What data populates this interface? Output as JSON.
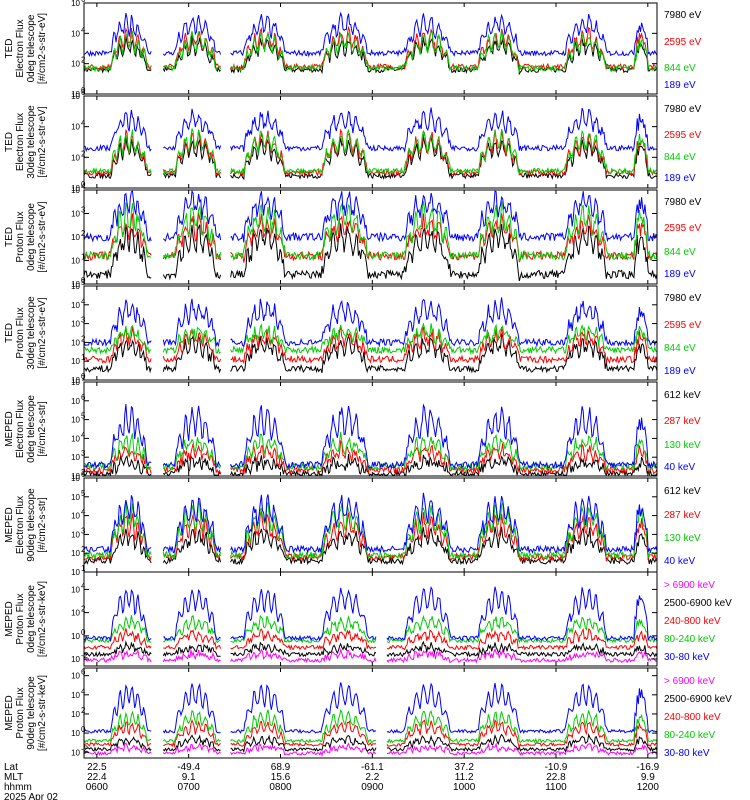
{
  "chart_data": [
    {
      "type": "line",
      "yscale": "log",
      "ylabel": [
        "TED",
        "Electron Flux",
        "0deg telescope",
        "[#/cm2-s-str-eV]"
      ],
      "yticks": [
        {
          "exp": 0,
          "base": "10"
        },
        {
          "exp": 2,
          "base": "10"
        },
        {
          "exp": 4,
          "base": "10"
        },
        {
          "exp": 6,
          "base": "10"
        }
      ],
      "ylim": [
        0,
        6
      ],
      "series": [
        {
          "name": "7980 eV",
          "color": "#000000",
          "base": 1.6,
          "peak": 3.6
        },
        {
          "name": "2595 eV",
          "color": "#ff0000",
          "base": 1.8,
          "peak": 4.2
        },
        {
          "name": "844 eV",
          "color": "#00cc00",
          "base": 1.7,
          "peak": 4.0
        },
        {
          "name": "189 eV",
          "color": "#0000ff",
          "base": 2.7,
          "peak": 5.1
        }
      ]
    },
    {
      "type": "line",
      "yscale": "log",
      "ylabel": [
        "TED",
        "Electron Flux",
        "30deg telescope",
        "[#/cm2-s-str-eV]"
      ],
      "yticks": [
        {
          "exp": 0,
          "base": "10"
        },
        {
          "exp": 2,
          "base": "10"
        },
        {
          "exp": 4,
          "base": "10"
        },
        {
          "exp": 6,
          "base": "10"
        }
      ],
      "ylim": [
        0,
        6
      ],
      "series": [
        {
          "name": "7980 eV",
          "color": "#000000",
          "base": 0.8,
          "peak": 3.2
        },
        {
          "name": "2595 eV",
          "color": "#ff0000",
          "base": 1.0,
          "peak": 3.6
        },
        {
          "name": "844 eV",
          "color": "#00cc00",
          "base": 1.1,
          "peak": 3.7
        },
        {
          "name": "189 eV",
          "color": "#0000ff",
          "base": 2.6,
          "peak": 5.0
        }
      ]
    },
    {
      "type": "line",
      "yscale": "log",
      "ylabel": [
        "TED",
        "Proton Flux",
        "0deg telescope",
        "[#/cm2-s-str-eV]"
      ],
      "yticks": [
        {
          "exp": 0,
          "base": "10"
        },
        {
          "exp": 1,
          "base": "10"
        },
        {
          "exp": 2,
          "base": "10"
        },
        {
          "exp": 3,
          "base": "10"
        },
        {
          "exp": 4,
          "base": "10"
        }
      ],
      "ylim": [
        0,
        4
      ],
      "series": [
        {
          "name": "7980 eV",
          "color": "#000000",
          "base": 0.4,
          "peak": 2.4
        },
        {
          "name": "2595 eV",
          "color": "#ff0000",
          "base": 1.2,
          "peak": 2.8
        },
        {
          "name": "844 eV",
          "color": "#00cc00",
          "base": 1.2,
          "peak": 3.3
        },
        {
          "name": "189 eV",
          "color": "#0000ff",
          "base": 2.0,
          "peak": 3.9
        }
      ]
    },
    {
      "type": "line",
      "yscale": "log",
      "ylabel": [
        "TED",
        "Proton Flux",
        "30deg telescope",
        "[#/cm2-s-str-eV]"
      ],
      "yticks": [
        {
          "exp": 0,
          "base": "10"
        },
        {
          "exp": 1,
          "base": "10"
        },
        {
          "exp": 2,
          "base": "10"
        },
        {
          "exp": 3,
          "base": "10"
        },
        {
          "exp": 4,
          "base": "10"
        },
        {
          "exp": 5,
          "base": "10"
        }
      ],
      "ylim": [
        0,
        5
      ],
      "series": [
        {
          "name": "7980 eV",
          "color": "#000000",
          "base": 0.6,
          "peak": 2.2
        },
        {
          "name": "2595 eV",
          "color": "#ff0000",
          "base": 1.1,
          "peak": 2.6
        },
        {
          "name": "844 eV",
          "color": "#00cc00",
          "base": 1.6,
          "peak": 2.8
        },
        {
          "name": "189 eV",
          "color": "#0000ff",
          "base": 2.0,
          "peak": 4.2
        }
      ]
    },
    {
      "type": "line",
      "yscale": "log",
      "ylabel": [
        "MEPED",
        "Electron Flux",
        "0deg telescope",
        "[#/cm2-s-str]"
      ],
      "yticks": [
        {
          "exp": 2,
          "base": "10"
        },
        {
          "exp": 3,
          "base": "10"
        },
        {
          "exp": 4,
          "base": "10"
        },
        {
          "exp": 5,
          "base": "10"
        },
        {
          "exp": 6,
          "base": "10"
        },
        {
          "exp": 7,
          "base": "10"
        }
      ],
      "ylim": [
        2,
        7
      ],
      "series": [
        {
          "name": "612 keV",
          "color": "#000000",
          "base": 2.1,
          "peak": 2.9
        },
        {
          "name": "287 keV",
          "color": "#ff0000",
          "base": 2.3,
          "peak": 3.6
        },
        {
          "name": "130 keV",
          "color": "#00cc00",
          "base": 2.5,
          "peak": 4.1
        },
        {
          "name": "40 keV",
          "color": "#0000ff",
          "base": 2.6,
          "peak": 5.6
        }
      ]
    },
    {
      "type": "line",
      "yscale": "log",
      "ylabel": [
        "MEPED",
        "Electron Flux",
        "90deg telescope",
        "[#/cm2-s-str]"
      ],
      "yticks": [
        {
          "exp": 1,
          "base": "10"
        },
        {
          "exp": 2,
          "base": "10"
        },
        {
          "exp": 3,
          "base": "10"
        },
        {
          "exp": 4,
          "base": "10"
        },
        {
          "exp": 5,
          "base": "10"
        },
        {
          "exp": 6,
          "base": "10"
        }
      ],
      "ylim": [
        1,
        6
      ],
      "series": [
        {
          "name": "612 keV",
          "color": "#000000",
          "base": 1.6,
          "peak": 3.2
        },
        {
          "name": "287 keV",
          "color": "#ff0000",
          "base": 1.8,
          "peak": 4.0
        },
        {
          "name": "130 keV",
          "color": "#00cc00",
          "base": 1.9,
          "peak": 4.6
        },
        {
          "name": "40 keV",
          "color": "#0000ff",
          "base": 2.2,
          "peak": 5.0
        }
      ]
    },
    {
      "type": "line",
      "yscale": "log",
      "ylabel": [
        "MEPED",
        "Proton Flux",
        "0deg telescope",
        "[#/cm2-s-str-keV]"
      ],
      "yticks": [
        {
          "exp": -2,
          "base": "10"
        },
        {
          "exp": 0,
          "base": "10"
        },
        {
          "exp": 2,
          "base": "10"
        },
        {
          "exp": 4,
          "base": "10"
        }
      ],
      "ylim": [
        -2.6,
        5.5
      ],
      "series": [
        {
          "name": "> 6900 keV",
          "color": "#ff00ff",
          "base": -2.1,
          "peak": -1.4
        },
        {
          "name": "2500-6900 keV",
          "color": "#000000",
          "base": -1.6,
          "peak": -0.8
        },
        {
          "name": "240-800 keV",
          "color": "#ff0000",
          "base": -1.0,
          "peak": 0.4
        },
        {
          "name": "80-240 keV",
          "color": "#00cc00",
          "base": -0.4,
          "peak": 1.6
        },
        {
          "name": "30-80 keV",
          "color": "#0000ff",
          "base": -0.2,
          "peak": 4.2
        }
      ]
    },
    {
      "type": "line",
      "yscale": "log",
      "ylabel": [
        "MEPED",
        "Proton Flux",
        "90deg telescope",
        "[#/cm2-s-str-keV]"
      ],
      "yticks": [
        {
          "exp": -2,
          "base": "10"
        },
        {
          "exp": 0,
          "base": "10"
        },
        {
          "exp": 2,
          "base": "10"
        },
        {
          "exp": 4,
          "base": "10"
        },
        {
          "exp": 6,
          "base": "10"
        }
      ],
      "ylim": [
        -2.6,
        6.8
      ],
      "series": [
        {
          "name": "> 6900 keV",
          "color": "#ff00ff",
          "base": -2.1,
          "peak": -1.3
        },
        {
          "name": "2500-6900 keV",
          "color": "#000000",
          "base": -1.7,
          "peak": -0.4
        },
        {
          "name": "240-800 keV",
          "color": "#ff0000",
          "base": -1.2,
          "peak": 1.2
        },
        {
          "name": "80-240 keV",
          "color": "#00cc00",
          "base": -0.8,
          "peak": 2.3
        },
        {
          "name": "30-80 keV",
          "color": "#0000ff",
          "base": 0.2,
          "peak": 5.2
        }
      ]
    }
  ],
  "xaxis": {
    "row_labels": [
      "Lat",
      "MLT",
      "hhmm"
    ],
    "date": "2025 Apr 02",
    "ticks": [
      {
        "lat": "22.5",
        "mlt": "22.4",
        "hhmm": "0600"
      },
      {
        "lat": "-49.4",
        "mlt": "9.1",
        "hhmm": "0700"
      },
      {
        "lat": "68.9",
        "mlt": "15.6",
        "hhmm": "0800"
      },
      {
        "lat": "-61.1",
        "mlt": "2.2",
        "hhmm": "0900"
      },
      {
        "lat": "37.2",
        "mlt": "11.2",
        "hhmm": "1000"
      },
      {
        "lat": "-10.9",
        "mlt": "22.8",
        "hhmm": "1100"
      },
      {
        "lat": "-16.9",
        "mlt": "9.9",
        "hhmm": "1200"
      }
    ],
    "hours": [
      6,
      7,
      8,
      9,
      10,
      11,
      12
    ]
  },
  "passes": [
    {
      "start": 6.15,
      "end": 6.55
    },
    {
      "start": 6.85,
      "end": 7.3
    },
    {
      "start": 7.6,
      "end": 8.05
    },
    {
      "start": 8.45,
      "end": 8.95
    },
    {
      "start": 9.35,
      "end": 9.85
    },
    {
      "start": 10.15,
      "end": 10.6
    },
    {
      "start": 11.1,
      "end": 11.55
    },
    {
      "start": 11.85,
      "end": 12.0
    }
  ]
}
